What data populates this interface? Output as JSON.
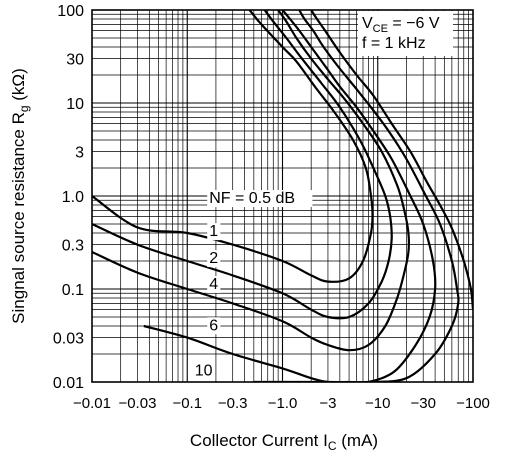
{
  "chart_data": {
    "type": "line",
    "title": "",
    "xlabel": {
      "main": "Collector Current  I",
      "sub": "C",
      "unit": "  (mA)"
    },
    "ylabel": {
      "main": "Singnal source resistance  R",
      "sub": "g",
      "unit": "  (kΩ)"
    },
    "x_scale": "log",
    "y_scale": "log",
    "xlim": [
      -0.01,
      -100
    ],
    "ylim": [
      0.01,
      100
    ],
    "grid": true,
    "x_ticks": [
      {
        "value": -0.01,
        "label": "−0.01"
      },
      {
        "value": -0.03,
        "label": "−0.03"
      },
      {
        "value": -0.1,
        "label": "−0.1"
      },
      {
        "value": -0.3,
        "label": "−0.3"
      },
      {
        "value": -1.0,
        "label": "−1.0"
      },
      {
        "value": -3,
        "label": "−3"
      },
      {
        "value": -10,
        "label": "−10"
      },
      {
        "value": -30,
        "label": "−30"
      },
      {
        "value": -100,
        "label": "−100"
      }
    ],
    "y_ticks": [
      {
        "value": 0.01,
        "label": "0.01"
      },
      {
        "value": 0.03,
        "label": "0.03"
      },
      {
        "value": 0.1,
        "label": "0.1"
      },
      {
        "value": 0.3,
        "label": "0.3"
      },
      {
        "value": 1.0,
        "label": "1.0"
      },
      {
        "value": 3,
        "label": "3"
      },
      {
        "value": 10,
        "label": "10"
      },
      {
        "value": 30,
        "label": "30"
      },
      {
        "value": 100,
        "label": "100"
      }
    ],
    "conditions": [
      {
        "main": "V",
        "sub": "CE",
        "rest": " = −6 V"
      },
      {
        "main": "f = 1 kHz",
        "sub": "",
        "rest": ""
      }
    ],
    "series": [
      {
        "label": "NF = 0.5 dB",
        "points": [
          [
            -0.01,
            1.0
          ],
          [
            -0.03,
            0.46
          ],
          [
            -0.1,
            0.4
          ],
          [
            -0.3,
            0.3
          ],
          [
            -1,
            0.2
          ],
          [
            -2,
            0.14
          ],
          [
            -3,
            0.12
          ],
          [
            -5,
            0.13
          ],
          [
            -7,
            0.2
          ],
          [
            -8.5,
            0.4
          ],
          [
            -8.8,
            0.65
          ],
          [
            -8.5,
            1.0
          ],
          [
            -7.5,
            2.0
          ],
          [
            -5.5,
            4.0
          ],
          [
            -3.5,
            8.0
          ],
          [
            -2.3,
            14
          ],
          [
            -1.4,
            28
          ],
          [
            -1.0,
            40
          ],
          [
            -0.6,
            70
          ],
          [
            -0.45,
            100
          ]
        ]
      },
      {
        "label": "1",
        "points": [
          [
            -0.01,
            0.5
          ],
          [
            -0.03,
            0.3
          ],
          [
            -0.1,
            0.2
          ],
          [
            -0.3,
            0.14
          ],
          [
            -1,
            0.09
          ],
          [
            -2,
            0.06
          ],
          [
            -3,
            0.05
          ],
          [
            -5,
            0.05
          ],
          [
            -8,
            0.07
          ],
          [
            -11,
            0.12
          ],
          [
            -13,
            0.2
          ],
          [
            -14,
            0.35
          ],
          [
            -13.5,
            0.6
          ],
          [
            -12,
            1.0
          ],
          [
            -9,
            2.0
          ],
          [
            -6.5,
            4.0
          ],
          [
            -4,
            9.0
          ],
          [
            -2.6,
            16
          ],
          [
            -1.6,
            30
          ],
          [
            -1.1,
            50
          ],
          [
            -0.8,
            75
          ],
          [
            -0.65,
            100
          ]
        ]
      },
      {
        "label": "2",
        "points": [
          [
            -0.01,
            0.25
          ],
          [
            -0.03,
            0.15
          ],
          [
            -0.1,
            0.1
          ],
          [
            -0.3,
            0.07
          ],
          [
            -1,
            0.045
          ],
          [
            -2,
            0.03
          ],
          [
            -3,
            0.025
          ],
          [
            -5,
            0.022
          ],
          [
            -8,
            0.025
          ],
          [
            -12,
            0.04
          ],
          [
            -16,
            0.08
          ],
          [
            -19,
            0.15
          ],
          [
            -21,
            0.25
          ],
          [
            -21,
            0.4
          ],
          [
            -19,
            0.7
          ],
          [
            -16,
            1.3
          ],
          [
            -11,
            3.0
          ],
          [
            -7,
            6.0
          ],
          [
            -4.5,
            11
          ],
          [
            -3,
            18
          ],
          [
            -2,
            30
          ],
          [
            -1.4,
            50
          ],
          [
            -1.1,
            75
          ],
          [
            -0.9,
            100
          ]
        ]
      },
      {
        "label": "4",
        "points": [
          [
            -0.035,
            0.04
          ],
          [
            -0.1,
            0.03
          ],
          [
            -0.3,
            0.02
          ],
          [
            -1,
            0.014
          ],
          [
            -2,
            0.011
          ],
          [
            -3,
            0.01
          ],
          [
            -5,
            0.01
          ],
          [
            -8,
            0.01
          ],
          [
            -15,
            0.013
          ],
          [
            -25,
            0.025
          ],
          [
            -35,
            0.05
          ],
          [
            -40,
            0.1
          ],
          [
            -38,
            0.2
          ],
          [
            -30,
            0.5
          ],
          [
            -22,
            1.0
          ],
          [
            -14,
            2.5
          ],
          [
            -9,
            5.0
          ],
          [
            -6,
            9.0
          ],
          [
            -4,
            15
          ],
          [
            -2.8,
            25
          ],
          [
            -2,
            40
          ],
          [
            -1.5,
            60
          ],
          [
            -1.2,
            80
          ],
          [
            -1.0,
            100
          ]
        ]
      },
      {
        "label": "6",
        "points": [
          [
            -0.5,
            0.01
          ],
          [
            -1,
            0.01
          ],
          [
            -3,
            0.01
          ],
          [
            -8,
            0.01
          ],
          [
            -20,
            0.011
          ],
          [
            -40,
            0.02
          ],
          [
            -60,
            0.04
          ],
          [
            -70,
            0.07
          ],
          [
            -68,
            0.1
          ],
          [
            -60,
            0.2
          ],
          [
            -45,
            0.5
          ],
          [
            -32,
            1.0
          ],
          [
            -20,
            2.5
          ],
          [
            -13,
            5.0
          ],
          [
            -8.5,
            9.0
          ],
          [
            -5.7,
            15
          ],
          [
            -3.8,
            25
          ],
          [
            -2.7,
            40
          ],
          [
            -2.1,
            60
          ],
          [
            -1.7,
            80
          ],
          [
            -1.5,
            100
          ]
        ]
      },
      {
        "label": "10",
        "points": [
          [
            -100,
            0.06
          ],
          [
            -95,
            0.1
          ],
          [
            -80,
            0.2
          ],
          [
            -60,
            0.45
          ],
          [
            -45,
            0.8
          ],
          [
            -33,
            1.4
          ],
          [
            -22,
            3.0
          ],
          [
            -14,
            6.0
          ],
          [
            -9,
            12
          ],
          [
            -6,
            20
          ],
          [
            -4,
            35
          ],
          [
            -2.8,
            60
          ],
          [
            -2.3,
            80
          ],
          [
            -2,
            100
          ]
        ]
      }
    ],
    "series_labels": [
      {
        "text": "NF = 0.5 dB",
        "x": -0.17,
        "y": 0.84
      },
      {
        "text": "1",
        "x": -0.17,
        "y": 0.37
      },
      {
        "text": "2",
        "x": -0.17,
        "y": 0.19
      },
      {
        "text": "4",
        "x": -0.17,
        "y": 0.1
      },
      {
        "text": "6",
        "x": -0.17,
        "y": 0.036
      },
      {
        "text": "10",
        "x": -0.12,
        "y": 0.0118
      }
    ]
  }
}
